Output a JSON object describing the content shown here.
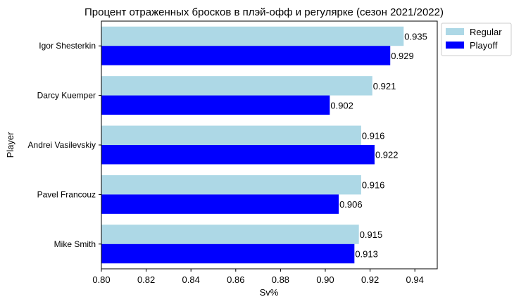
{
  "chart_data": {
    "type": "bar",
    "orientation": "horizontal",
    "title": "Процент отраженных бросков в плэй-офф и регулярке (сезон 2021/2022)",
    "xlabel": "Sv%",
    "ylabel": "Player",
    "xlim": [
      0.8,
      0.95
    ],
    "xticks": [
      "0.80",
      "0.82",
      "0.84",
      "0.86",
      "0.88",
      "0.90",
      "0.92",
      "0.94"
    ],
    "categories": [
      "Igor Shesterkin",
      "Darcy Kuemper",
      "Andrei Vasilevskiy",
      "Pavel Francouz",
      "Mike Smith"
    ],
    "series": [
      {
        "name": "Regular",
        "color": "#add8e6",
        "values": [
          0.935,
          0.921,
          0.916,
          0.916,
          0.915
        ],
        "labels": [
          "0.935",
          "0.921",
          "0.916",
          "0.916",
          "0.915"
        ]
      },
      {
        "name": "Playoff",
        "color": "#0000ff",
        "values": [
          0.929,
          0.902,
          0.922,
          0.906,
          0.913
        ],
        "labels": [
          "0.929",
          "0.902",
          "0.922",
          "0.906",
          "0.913"
        ]
      }
    ],
    "grid": false,
    "legend_position": "top-right outside"
  }
}
